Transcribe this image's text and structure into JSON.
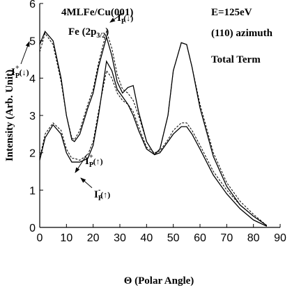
{
  "chart_data": {
    "type": "line",
    "xlabel": "Θ (Polar Angle)",
    "ylabel": "Intensity (Arb. Unit)",
    "x": [
      0,
      2,
      5,
      8,
      10,
      12,
      13,
      15,
      18,
      20,
      22,
      25,
      27,
      29,
      31,
      33,
      35,
      37,
      40,
      43,
      45,
      48,
      50,
      53,
      55,
      57,
      60,
      65,
      70,
      75,
      80,
      85
    ],
    "series": [
      {
        "color": "#000000",
        "dash": "none",
        "values": [
          4.9,
          5.25,
          5.0,
          4.0,
          3.0,
          2.35,
          2.3,
          2.5,
          3.2,
          3.6,
          4.3,
          5.1,
          4.6,
          3.9,
          3.6,
          3.75,
          3.8,
          3.1,
          2.3,
          1.95,
          2.1,
          3.0,
          4.2,
          4.95,
          4.9,
          4.3,
          3.2,
          1.9,
          1.1,
          0.6,
          0.3,
          0.05
        ]
      },
      {
        "color": "#000000",
        "dash": "3,2",
        "values": [
          4.7,
          5.2,
          4.9,
          3.9,
          3.0,
          2.4,
          2.35,
          2.6,
          3.3,
          3.7,
          4.4,
          5.25,
          4.8,
          4.1,
          3.7,
          3.6,
          3.4,
          3.0,
          2.3,
          1.95,
          2.1,
          3.0,
          4.2,
          4.95,
          4.9,
          4.3,
          3.3,
          2.0,
          1.2,
          0.7,
          0.35,
          0.05
        ]
      },
      {
        "color": "#000000",
        "dash": "none",
        "values": [
          1.8,
          2.4,
          2.75,
          2.5,
          2.0,
          1.75,
          1.75,
          1.75,
          1.85,
          2.2,
          3.0,
          4.45,
          4.2,
          3.7,
          3.5,
          3.3,
          3.0,
          2.6,
          2.1,
          1.95,
          2.0,
          2.3,
          2.5,
          2.7,
          2.7,
          2.5,
          2.1,
          1.4,
          0.9,
          0.5,
          0.2,
          0.03
        ]
      },
      {
        "color": "#000000",
        "dash": "3,2",
        "values": [
          1.85,
          2.5,
          2.8,
          2.6,
          2.1,
          1.85,
          1.85,
          1.8,
          1.95,
          2.3,
          3.1,
          4.2,
          4.0,
          3.6,
          3.4,
          3.3,
          3.1,
          2.7,
          2.15,
          2.0,
          2.05,
          2.35,
          2.6,
          2.8,
          2.8,
          2.6,
          2.2,
          1.5,
          1.0,
          0.6,
          0.3,
          0.05
        ]
      }
    ],
    "xlim": [
      0,
      90
    ],
    "xticks": [
      0,
      10,
      20,
      30,
      40,
      50,
      60,
      70,
      80,
      90
    ],
    "ylim": [
      0,
      6
    ],
    "yticks": [
      0,
      1,
      2,
      3,
      4,
      5,
      6
    ],
    "annotations": [
      {
        "text": "4MLFe/Cu(001)"
      },
      {
        "text": "E=125eV"
      },
      {
        "text": "Fe (2p",
        "sub": "3/2",
        "suffix": ")"
      },
      {
        "text": "(110) azimuth"
      },
      {
        "text": "Total Term"
      },
      {
        "text": "I",
        "sub": "P",
        "sup": "+",
        "suffix": "(↓)"
      },
      {
        "text": "I",
        "sub": "P",
        "sup": "-",
        "suffix": "(↓)"
      },
      {
        "text": "I",
        "sub": "P",
        "sup": "+",
        "suffix": "(↑)"
      },
      {
        "text": "I",
        "sub": "P",
        "sup": "-",
        "suffix": "(↑)"
      }
    ]
  }
}
